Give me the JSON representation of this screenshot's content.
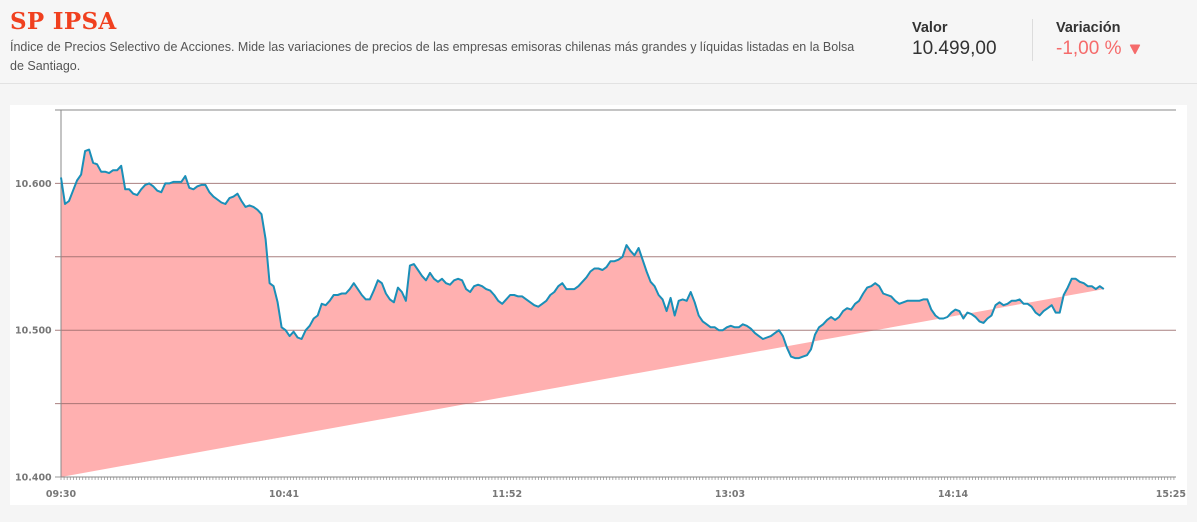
{
  "header": {
    "title": "SP IPSA",
    "description": "Índice de Precios Selectivo de Acciones. Mide las variaciones de precios de las empresas emisoras chilenas más grandes y líquidas listadas en la Bolsa de Santiago.",
    "valor_label": "Valor",
    "valor_value": "10.499,00",
    "variacion_label": "Variación",
    "variacion_value": "-1,00 %",
    "variacion_icon": "down-triangle-icon"
  },
  "colors": {
    "title": "#f0401f",
    "negative": "#f56b6b",
    "line": "#1a8fb8",
    "fill": "#ffb0b0"
  },
  "chart_data": {
    "type": "area",
    "title": "",
    "xlabel": "",
    "ylabel": "",
    "ylim": [
      10400,
      10650
    ],
    "grid": true,
    "legend": "none",
    "y_ticks": [
      10400,
      10450,
      10500,
      10550,
      10600,
      10650
    ],
    "y_tick_labels": [
      "10.400",
      "",
      "10.500",
      "",
      "10.600",
      ""
    ],
    "x_tick_labels": [
      "09:30",
      "10:41",
      "11:52",
      "13:03",
      "14:14",
      "15:25"
    ],
    "x": [
      0,
      2,
      4,
      6,
      8,
      10,
      12,
      14,
      16,
      18,
      20,
      22,
      24,
      26,
      28,
      30,
      32,
      34,
      36,
      38,
      40,
      42,
      44,
      46,
      48,
      50,
      52,
      54,
      56,
      58,
      60,
      62,
      64,
      66,
      68,
      70,
      72,
      74,
      76,
      78,
      80,
      82,
      84,
      86,
      88,
      90,
      92,
      94,
      96,
      98,
      100,
      102,
      104,
      106,
      108,
      110,
      112,
      114,
      116,
      118,
      120,
      122,
      124,
      126,
      128,
      130,
      132,
      134,
      136,
      138,
      140,
      142,
      144,
      146,
      148,
      150,
      152,
      154,
      156,
      158,
      160,
      162,
      164,
      166,
      168,
      170,
      172,
      174,
      176,
      178,
      180,
      182,
      184,
      186,
      188,
      190,
      192,
      194,
      196,
      198,
      200,
      202,
      204,
      206,
      208,
      210,
      212,
      214,
      216,
      218,
      220,
      222,
      224,
      226,
      228,
      230,
      232,
      234,
      236,
      238,
      240,
      242,
      244,
      246,
      248,
      250,
      252,
      254,
      256,
      258,
      260,
      262,
      264,
      266,
      268,
      270,
      272,
      274,
      276,
      278,
      280,
      282,
      284,
      286,
      288,
      290,
      292,
      294,
      296,
      298,
      300,
      302,
      304,
      306,
      308,
      310,
      312,
      314,
      316,
      318,
      320,
      322,
      324,
      326,
      328,
      330,
      332,
      334,
      336,
      338,
      340,
      342,
      344,
      346,
      348,
      350,
      352,
      354,
      356,
      358,
      360,
      362,
      364,
      366,
      368,
      370,
      372,
      374,
      376,
      378,
      380,
      382,
      384,
      386,
      388,
      390,
      392,
      394,
      396,
      398,
      400,
      402,
      404,
      406,
      408,
      410,
      412,
      414,
      416,
      418,
      420,
      422,
      424,
      426,
      428,
      430,
      432,
      434,
      436,
      438,
      440,
      442,
      444,
      446,
      448,
      450,
      452,
      454,
      456,
      458,
      460,
      462,
      464,
      466,
      468,
      470,
      472,
      474,
      476,
      478,
      480,
      482,
      484,
      486,
      488,
      490,
      492,
      494,
      496,
      498,
      500,
      502,
      504,
      506,
      508,
      510,
      512,
      514,
      516,
      518,
      520,
      522,
      524,
      526,
      528,
      530,
      532,
      534,
      536,
      538,
      540,
      542,
      544,
      546,
      548,
      550,
      552,
      554,
      556
    ],
    "x_unit_note": "x is horizontal position index (0 = 09:30, 556 = 15:25), ~2 px per sample",
    "series": [
      {
        "name": "SP IPSA",
        "values": [
          10604,
          10586,
          10588,
          10595,
          10602,
          10606,
          10622,
          10623,
          10614,
          10613,
          10608,
          10608,
          10607,
          10609,
          10609,
          10612,
          10596,
          10596,
          10593,
          10592,
          10596,
          10599,
          10600,
          10598,
          10595,
          10594,
          10600,
          10600,
          10601,
          10601,
          10601,
          10605,
          10597,
          10596,
          10598,
          10599,
          10599,
          10594,
          10591,
          10589,
          10587,
          10586,
          10590,
          10591,
          10593,
          10588,
          10584,
          10585,
          10584,
          10582,
          10579,
          10562,
          10532,
          10530,
          10519,
          10502,
          10500,
          10496,
          10499,
          10495,
          10494,
          10500,
          10503,
          10508,
          10510,
          10518,
          10517,
          10520,
          10524,
          10524,
          10525,
          10525,
          10528,
          10532,
          10528,
          10524,
          10521,
          10521,
          10527,
          10534,
          10532,
          10525,
          10521,
          10519,
          10529,
          10526,
          10520,
          10544,
          10545,
          10541,
          10537,
          10534,
          10539,
          10535,
          10533,
          10535,
          10532,
          10531,
          10534,
          10535,
          10534,
          10528,
          10526,
          10530,
          10531,
          10530,
          10528,
          10527,
          10524,
          10520,
          10518,
          10521,
          10524,
          10524,
          10523,
          10523,
          10521,
          10519,
          10517,
          10516,
          10518,
          10520,
          10524,
          10526,
          10530,
          10532,
          10528,
          10528,
          10528,
          10530,
          10533,
          10536,
          10540,
          10542,
          10542,
          10541,
          10543,
          10547,
          10547,
          10548,
          10550,
          10558,
          10554,
          10551,
          10556,
          10548,
          10540,
          10533,
          10530,
          10524,
          10521,
          10513,
          10522,
          10510,
          10520,
          10521,
          10520,
          10526,
          10519,
          10510,
          10506,
          10504,
          10502,
          10502,
          10500,
          10500,
          10502,
          10503,
          10502,
          10502,
          10504,
          10503,
          10501,
          10498,
          10496,
          10494,
          10495,
          10496,
          10498,
          10500,
          10496,
          10488,
          10482,
          10481,
          10481,
          10482,
          10483,
          10487,
          10497,
          10502,
          10504,
          10507,
          10509,
          10507,
          10509,
          10513,
          10515,
          10514,
          10518,
          10520,
          10525,
          10529,
          10530,
          10532,
          10530,
          10525,
          10524,
          10523,
          10520,
          10518,
          10519,
          10520,
          10520,
          10520,
          10520,
          10521,
          10521,
          10514,
          10510,
          10508,
          10508,
          10509,
          10512,
          10514,
          10513,
          10508,
          10512,
          10511,
          10509,
          10506,
          10505,
          10508,
          10510,
          10517,
          10519,
          10517,
          10518,
          10520,
          10520,
          10521,
          10518,
          10518,
          10516,
          10512,
          10510,
          10513,
          10515,
          10517,
          10512,
          10512,
          10524,
          10529,
          10535,
          10535,
          10533,
          10532,
          10530,
          10530,
          10528,
          10530,
          10528
        ]
      }
    ]
  }
}
